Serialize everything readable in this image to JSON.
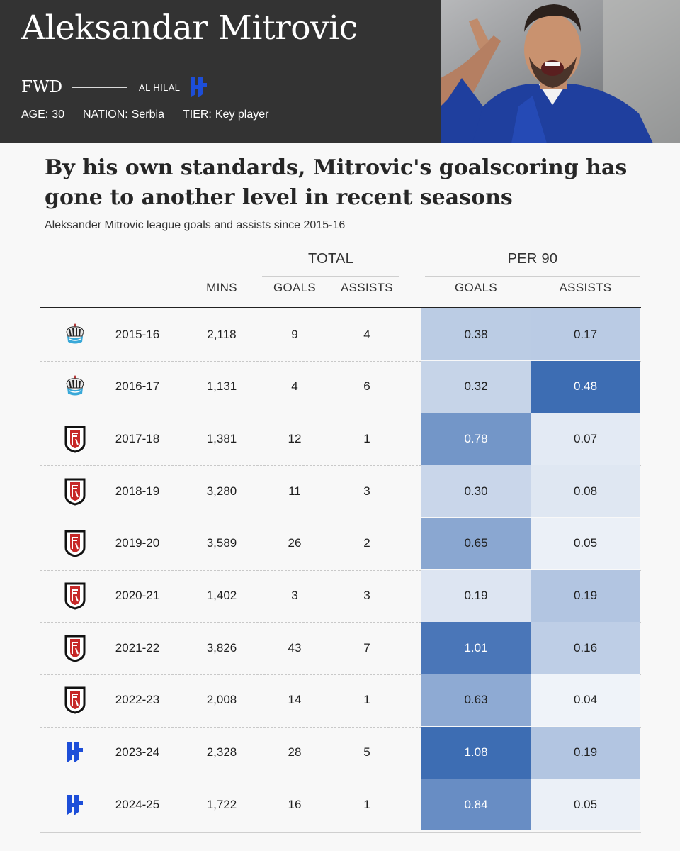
{
  "header": {
    "name": "Aleksandar Mitrovic",
    "position": "FWD",
    "club": "AL HILAL",
    "meta": [
      {
        "key": "AGE:",
        "value": "30"
      },
      {
        "key": "NATION:",
        "value": "Serbia"
      },
      {
        "key": "TIER:",
        "value": "Key player"
      }
    ]
  },
  "title": "By his own standards, Mitrovic's goalscoring has gone to another level in recent seasons",
  "subtitle": "Aleksander Mitrovic league goals and assists since 2015-16",
  "table": {
    "group_total": "TOTAL",
    "group_per90": "PER 90",
    "columns": {
      "mins": "MINS",
      "goals": "GOALS",
      "assists": "ASSISTS",
      "goals90": "GOALS",
      "assists90": "ASSISTS"
    }
  },
  "colors": {
    "heat_high": "#3d6db3",
    "heat_low": "#ffffff",
    "newcastle": "#111111",
    "fulham": "#111111",
    "alhilal": "#1d4ed8"
  },
  "chart_data": {
    "type": "table",
    "title": "By his own standards, Mitrovic's goalscoring has gone to another level in recent seasons",
    "subtitle": "Aleksander Mitrovic league goals and assists since 2015-16",
    "columns": [
      "MINS",
      "GOALS",
      "ASSISTS",
      "GOALS",
      "ASSISTS"
    ],
    "rows": [
      {
        "club": "newcastle",
        "season": "2015-16",
        "mins": "2,118",
        "goals": "9",
        "assists": "4",
        "goals90": "0.38",
        "assists90": "0.17"
      },
      {
        "club": "newcastle",
        "season": "2016-17",
        "mins": "1,131",
        "goals": "4",
        "assists": "6",
        "goals90": "0.32",
        "assists90": "0.48"
      },
      {
        "club": "fulham",
        "season": "2017-18",
        "mins": "1,381",
        "goals": "12",
        "assists": "1",
        "goals90": "0.78",
        "assists90": "0.07"
      },
      {
        "club": "fulham",
        "season": "2018-19",
        "mins": "3,280",
        "goals": "11",
        "assists": "3",
        "goals90": "0.30",
        "assists90": "0.08"
      },
      {
        "club": "fulham",
        "season": "2019-20",
        "mins": "3,589",
        "goals": "26",
        "assists": "2",
        "goals90": "0.65",
        "assists90": "0.05"
      },
      {
        "club": "fulham",
        "season": "2020-21",
        "mins": "1,402",
        "goals": "3",
        "assists": "3",
        "goals90": "0.19",
        "assists90": "0.19"
      },
      {
        "club": "fulham",
        "season": "2021-22",
        "mins": "3,826",
        "goals": "43",
        "assists": "7",
        "goals90": "1.01",
        "assists90": "0.16"
      },
      {
        "club": "fulham",
        "season": "2022-23",
        "mins": "2,008",
        "goals": "14",
        "assists": "1",
        "goals90": "0.63",
        "assists90": "0.04"
      },
      {
        "club": "alhilal",
        "season": "2023-24",
        "mins": "2,328",
        "goals": "28",
        "assists": "5",
        "goals90": "1.08",
        "assists90": "0.19"
      },
      {
        "club": "alhilal",
        "season": "2024-25",
        "mins": "1,722",
        "goals": "16",
        "assists": "1",
        "goals90": "0.84",
        "assists90": "0.05"
      }
    ]
  }
}
